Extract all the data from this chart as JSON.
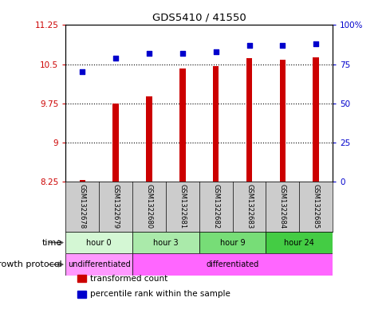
{
  "title": "GDS5410 / 41550",
  "samples": [
    "GSM1322678",
    "GSM1322679",
    "GSM1322680",
    "GSM1322681",
    "GSM1322682",
    "GSM1322683",
    "GSM1322684",
    "GSM1322685"
  ],
  "transformed_count": [
    8.28,
    9.75,
    9.88,
    10.42,
    10.47,
    10.62,
    10.58,
    10.63
  ],
  "percentile_rank": [
    70,
    79,
    82,
    82,
    83,
    87,
    87,
    88
  ],
  "bar_bottom": 8.25,
  "ylim_left": [
    8.25,
    11.25
  ],
  "ylim_right": [
    0,
    100
  ],
  "yticks_left": [
    8.25,
    9.0,
    9.75,
    10.5,
    11.25
  ],
  "ytick_labels_left": [
    "8.25",
    "9",
    "9.75",
    "10.5",
    "11.25"
  ],
  "yticks_right": [
    0,
    25,
    50,
    75,
    100
  ],
  "ytick_labels_right": [
    "0",
    "25",
    "50",
    "75",
    "100%"
  ],
  "bar_color": "#cc0000",
  "dot_color": "#0000cc",
  "time_groups": [
    {
      "label": "hour 0",
      "start": 0,
      "end": 2,
      "color": "#d4f7d4"
    },
    {
      "label": "hour 3",
      "start": 2,
      "end": 4,
      "color": "#aaeaaa"
    },
    {
      "label": "hour 9",
      "start": 4,
      "end": 6,
      "color": "#77dd77"
    },
    {
      "label": "hour 24",
      "start": 6,
      "end": 8,
      "color": "#44cc44"
    }
  ],
  "growth_groups": [
    {
      "label": "undifferentiated",
      "start": 0,
      "end": 2,
      "color": "#ff99ff"
    },
    {
      "label": "differentiated",
      "start": 2,
      "end": 8,
      "color": "#ff66ff"
    }
  ],
  "legend_bar_label": "transformed count",
  "legend_dot_label": "percentile rank within the sample",
  "time_label": "time",
  "growth_label": "growth protocol",
  "plot_bg": "#ffffff",
  "tick_color_left": "#cc0000",
  "tick_color_right": "#0000cc",
  "sample_box_color": "#cccccc",
  "grid_lines": [
    9.0,
    9.75,
    10.5
  ]
}
